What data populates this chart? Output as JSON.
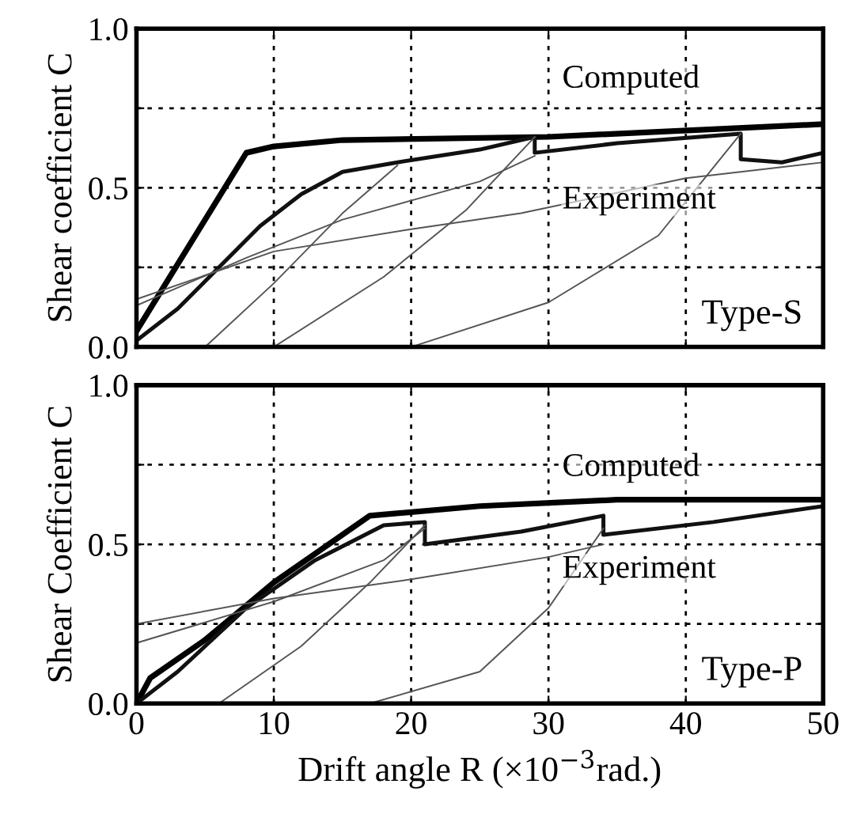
{
  "chart_data": [
    {
      "type": "line",
      "ylabel": "Shear coefficient C",
      "xlim": [
        0,
        50
      ],
      "ylim": [
        0,
        1.0
      ],
      "xticks": [
        {
          "value": 0,
          "label": null
        },
        {
          "value": 10,
          "label": null
        },
        {
          "value": 20,
          "label": null
        },
        {
          "value": 30,
          "label": null
        },
        {
          "value": 40,
          "label": null
        },
        {
          "value": 50,
          "label": null
        }
      ],
      "yticks": [
        {
          "value": 0,
          "label": "0.0"
        },
        {
          "value": 0.25,
          "label": null
        },
        {
          "value": 0.5,
          "label": "0.5"
        },
        {
          "value": 0.75,
          "label": null
        },
        {
          "value": 1.0,
          "label": "1.0"
        }
      ],
      "tick_labels": "y",
      "grid": true,
      "line_style": "solid",
      "marker": "none",
      "series": [
        {
          "color": "#000000",
          "x": [
            0,
            8,
            10,
            15,
            30,
            50
          ],
          "values": [
            0.05,
            0.61,
            0.63,
            0.65,
            0.66,
            0.7
          ]
        },
        {
          "color": "#111111",
          "x": [
            0,
            3,
            6,
            9,
            12,
            15,
            19,
            25,
            29,
            29,
            35,
            44,
            44,
            47,
            50
          ],
          "values": [
            0.02,
            0.12,
            0.25,
            0.38,
            0.48,
            0.55,
            0.58,
            0.62,
            0.66,
            0.61,
            0.64,
            0.67,
            0.59,
            0.58,
            0.61
          ]
        },
        {
          "color": "#555555",
          "x": [
            5,
            10,
            15,
            19
          ],
          "values": [
            0,
            0.2,
            0.42,
            0.57
          ]
        },
        {
          "color": "#555555",
          "x": [
            10,
            18,
            24,
            29
          ],
          "values": [
            0,
            0.22,
            0.43,
            0.66
          ]
        },
        {
          "color": "#555555",
          "x": [
            20,
            30,
            38,
            44
          ],
          "values": [
            0,
            0.14,
            0.35,
            0.67
          ]
        },
        {
          "color": "#555555",
          "x": [
            0,
            10,
            20,
            28,
            40,
            50
          ],
          "values": [
            0.15,
            0.3,
            0.37,
            0.42,
            0.53,
            0.58
          ]
        },
        {
          "color": "#555555",
          "x": [
            0,
            8,
            15,
            25,
            29
          ],
          "values": [
            0.13,
            0.28,
            0.4,
            0.52,
            0.6
          ]
        }
      ],
      "annotations": [
        "Computed",
        "Experiment",
        "Type-S"
      ]
    },
    {
      "type": "line",
      "ylabel": "Shear Coefficient C",
      "xlabel": "Drift angle R (×10$^{−3}$rad.)",
      "xlim": [
        0,
        50
      ],
      "ylim": [
        0,
        1.0
      ],
      "xticks": [
        0,
        10,
        20,
        30,
        40,
        50
      ],
      "yticks": [
        {
          "value": 0,
          "label": "0.0"
        },
        {
          "value": 0.25,
          "label": null
        },
        {
          "value": 0.5,
          "label": "0.5"
        },
        {
          "value": 0.75,
          "label": null
        },
        {
          "value": 1.0,
          "label": "1.0"
        }
      ],
      "grid": true,
      "line_style": "solid",
      "marker": "none",
      "series": [
        {
          "color": "#000000",
          "x": [
            0,
            1,
            5,
            10,
            17,
            25,
            35,
            50
          ],
          "values": [
            0,
            0.08,
            0.2,
            0.38,
            0.59,
            0.62,
            0.64,
            0.64
          ]
        },
        {
          "color": "#111111",
          "x": [
            0,
            3,
            8,
            13,
            18,
            21,
            21,
            28,
            34,
            34,
            42,
            50
          ],
          "values": [
            0,
            0.1,
            0.3,
            0.45,
            0.56,
            0.57,
            0.5,
            0.54,
            0.59,
            0.53,
            0.57,
            0.62
          ]
        },
        {
          "color": "#555555",
          "x": [
            6,
            12,
            17,
            21
          ],
          "values": [
            0,
            0.18,
            0.38,
            0.56
          ]
        },
        {
          "color": "#555555",
          "x": [
            17,
            25,
            30,
            34
          ],
          "values": [
            0,
            0.1,
            0.3,
            0.55
          ]
        },
        {
          "color": "#555555",
          "x": [
            0,
            10,
            20,
            30,
            34
          ],
          "values": [
            0.25,
            0.33,
            0.39,
            0.46,
            0.5
          ]
        },
        {
          "color": "#555555",
          "x": [
            0,
            10,
            18,
            21
          ],
          "values": [
            0.19,
            0.32,
            0.45,
            0.55
          ]
        }
      ],
      "annotations": [
        "Computed",
        "Experiment",
        "Type-P"
      ]
    }
  ]
}
